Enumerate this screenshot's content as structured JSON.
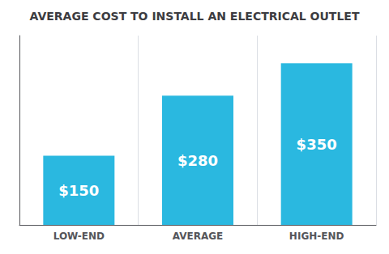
{
  "chart_data": {
    "type": "bar",
    "title": "AVERAGE COST TO INSTALL AN ELECTRICAL OUTLET",
    "categories": [
      "LOW-END",
      "AVERAGE",
      "HIGH-END"
    ],
    "values": [
      150,
      280,
      350
    ],
    "value_labels": [
      "$150",
      "$280",
      "$350"
    ],
    "data_labels": true,
    "color": "#2ab8e0",
    "ylim": [
      0,
      410
    ],
    "yticks": [],
    "grid": true,
    "tick_labels": "x"
  }
}
